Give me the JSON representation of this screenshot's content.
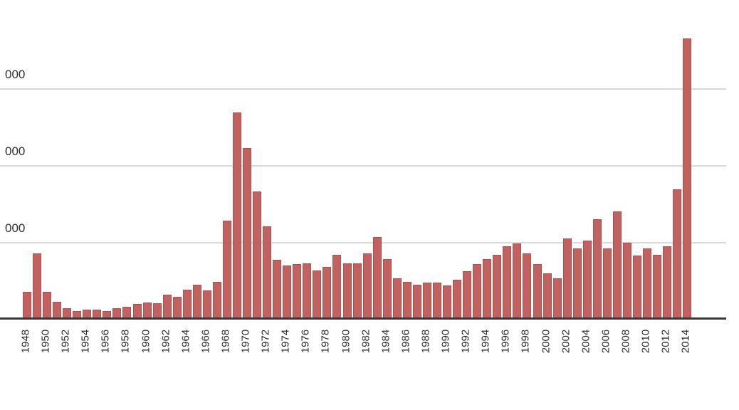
{
  "chart_data": {
    "type": "bar",
    "title": "",
    "x": [
      1948,
      1949,
      1950,
      1951,
      1952,
      1953,
      1954,
      1955,
      1956,
      1957,
      1958,
      1959,
      1960,
      1961,
      1962,
      1963,
      1964,
      1965,
      1966,
      1967,
      1968,
      1969,
      1970,
      1971,
      1972,
      1973,
      1974,
      1975,
      1976,
      1977,
      1978,
      1979,
      1980,
      1981,
      1982,
      1983,
      1984,
      1985,
      1986,
      1987,
      1988,
      1989,
      1990,
      1991,
      1992,
      1993,
      1994,
      1995,
      1996,
      1997,
      1998,
      1999,
      2000,
      2001,
      2002,
      2003,
      2004,
      2005,
      2006,
      2007,
      2008,
      2009,
      2010,
      2011,
      2012,
      2013,
      2014
    ],
    "values": [
      3350,
      8370,
      3350,
      2050,
      1210,
      840,
      1020,
      1020,
      840,
      1210,
      1400,
      1770,
      1950,
      1860,
      2980,
      2700,
      3630,
      4280,
      3530,
      4650,
      12650,
      26700,
      22140,
      16460,
      11910,
      7530,
      6790,
      6980,
      7070,
      6140,
      6600,
      8190,
      7070,
      7070,
      8370,
      10510,
      7630,
      5120,
      4650,
      4280,
      4560,
      4560,
      4190,
      4930,
      6050,
      6980,
      7630,
      8190,
      9300,
      9670,
      8370,
      6980,
      5770,
      5120,
      10330,
      9020,
      10050,
      12840,
      9020,
      13860,
      9770,
      8090,
      9020,
      8190,
      9300,
      16740,
      36370
    ],
    "x_tick_labels": [
      "1948",
      "1950",
      "1952",
      "1954",
      "1956",
      "1958",
      "1960",
      "1962",
      "1964",
      "1966",
      "1968",
      "1970",
      "1972",
      "1974",
      "1976",
      "1978",
      "1980",
      "1982",
      "1984",
      "1986",
      "1988",
      "1990",
      "1992",
      "1994",
      "1996",
      "1998",
      "2000",
      "2002",
      "2004",
      "2006",
      "2008",
      "2010",
      "2012",
      "2014"
    ],
    "y_tick_labels_visible": [
      "000",
      "000",
      "000"
    ],
    "y_gridline_values_estimated": [
      10000,
      20000,
      30000
    ],
    "ylim": [
      0,
      41500
    ],
    "xlabel": "",
    "ylabel": "",
    "grid": "horizontal",
    "legend": "none",
    "note": "y-axis tick labels are truncated by the left image edge; only '000' is visible at each gridline",
    "colors": {
      "bar_fill": "#c16260",
      "bar_border": "#aa5250",
      "gridline": "#d9d9d9",
      "axis_line": "#383838",
      "text": "#2d2d2d"
    }
  }
}
